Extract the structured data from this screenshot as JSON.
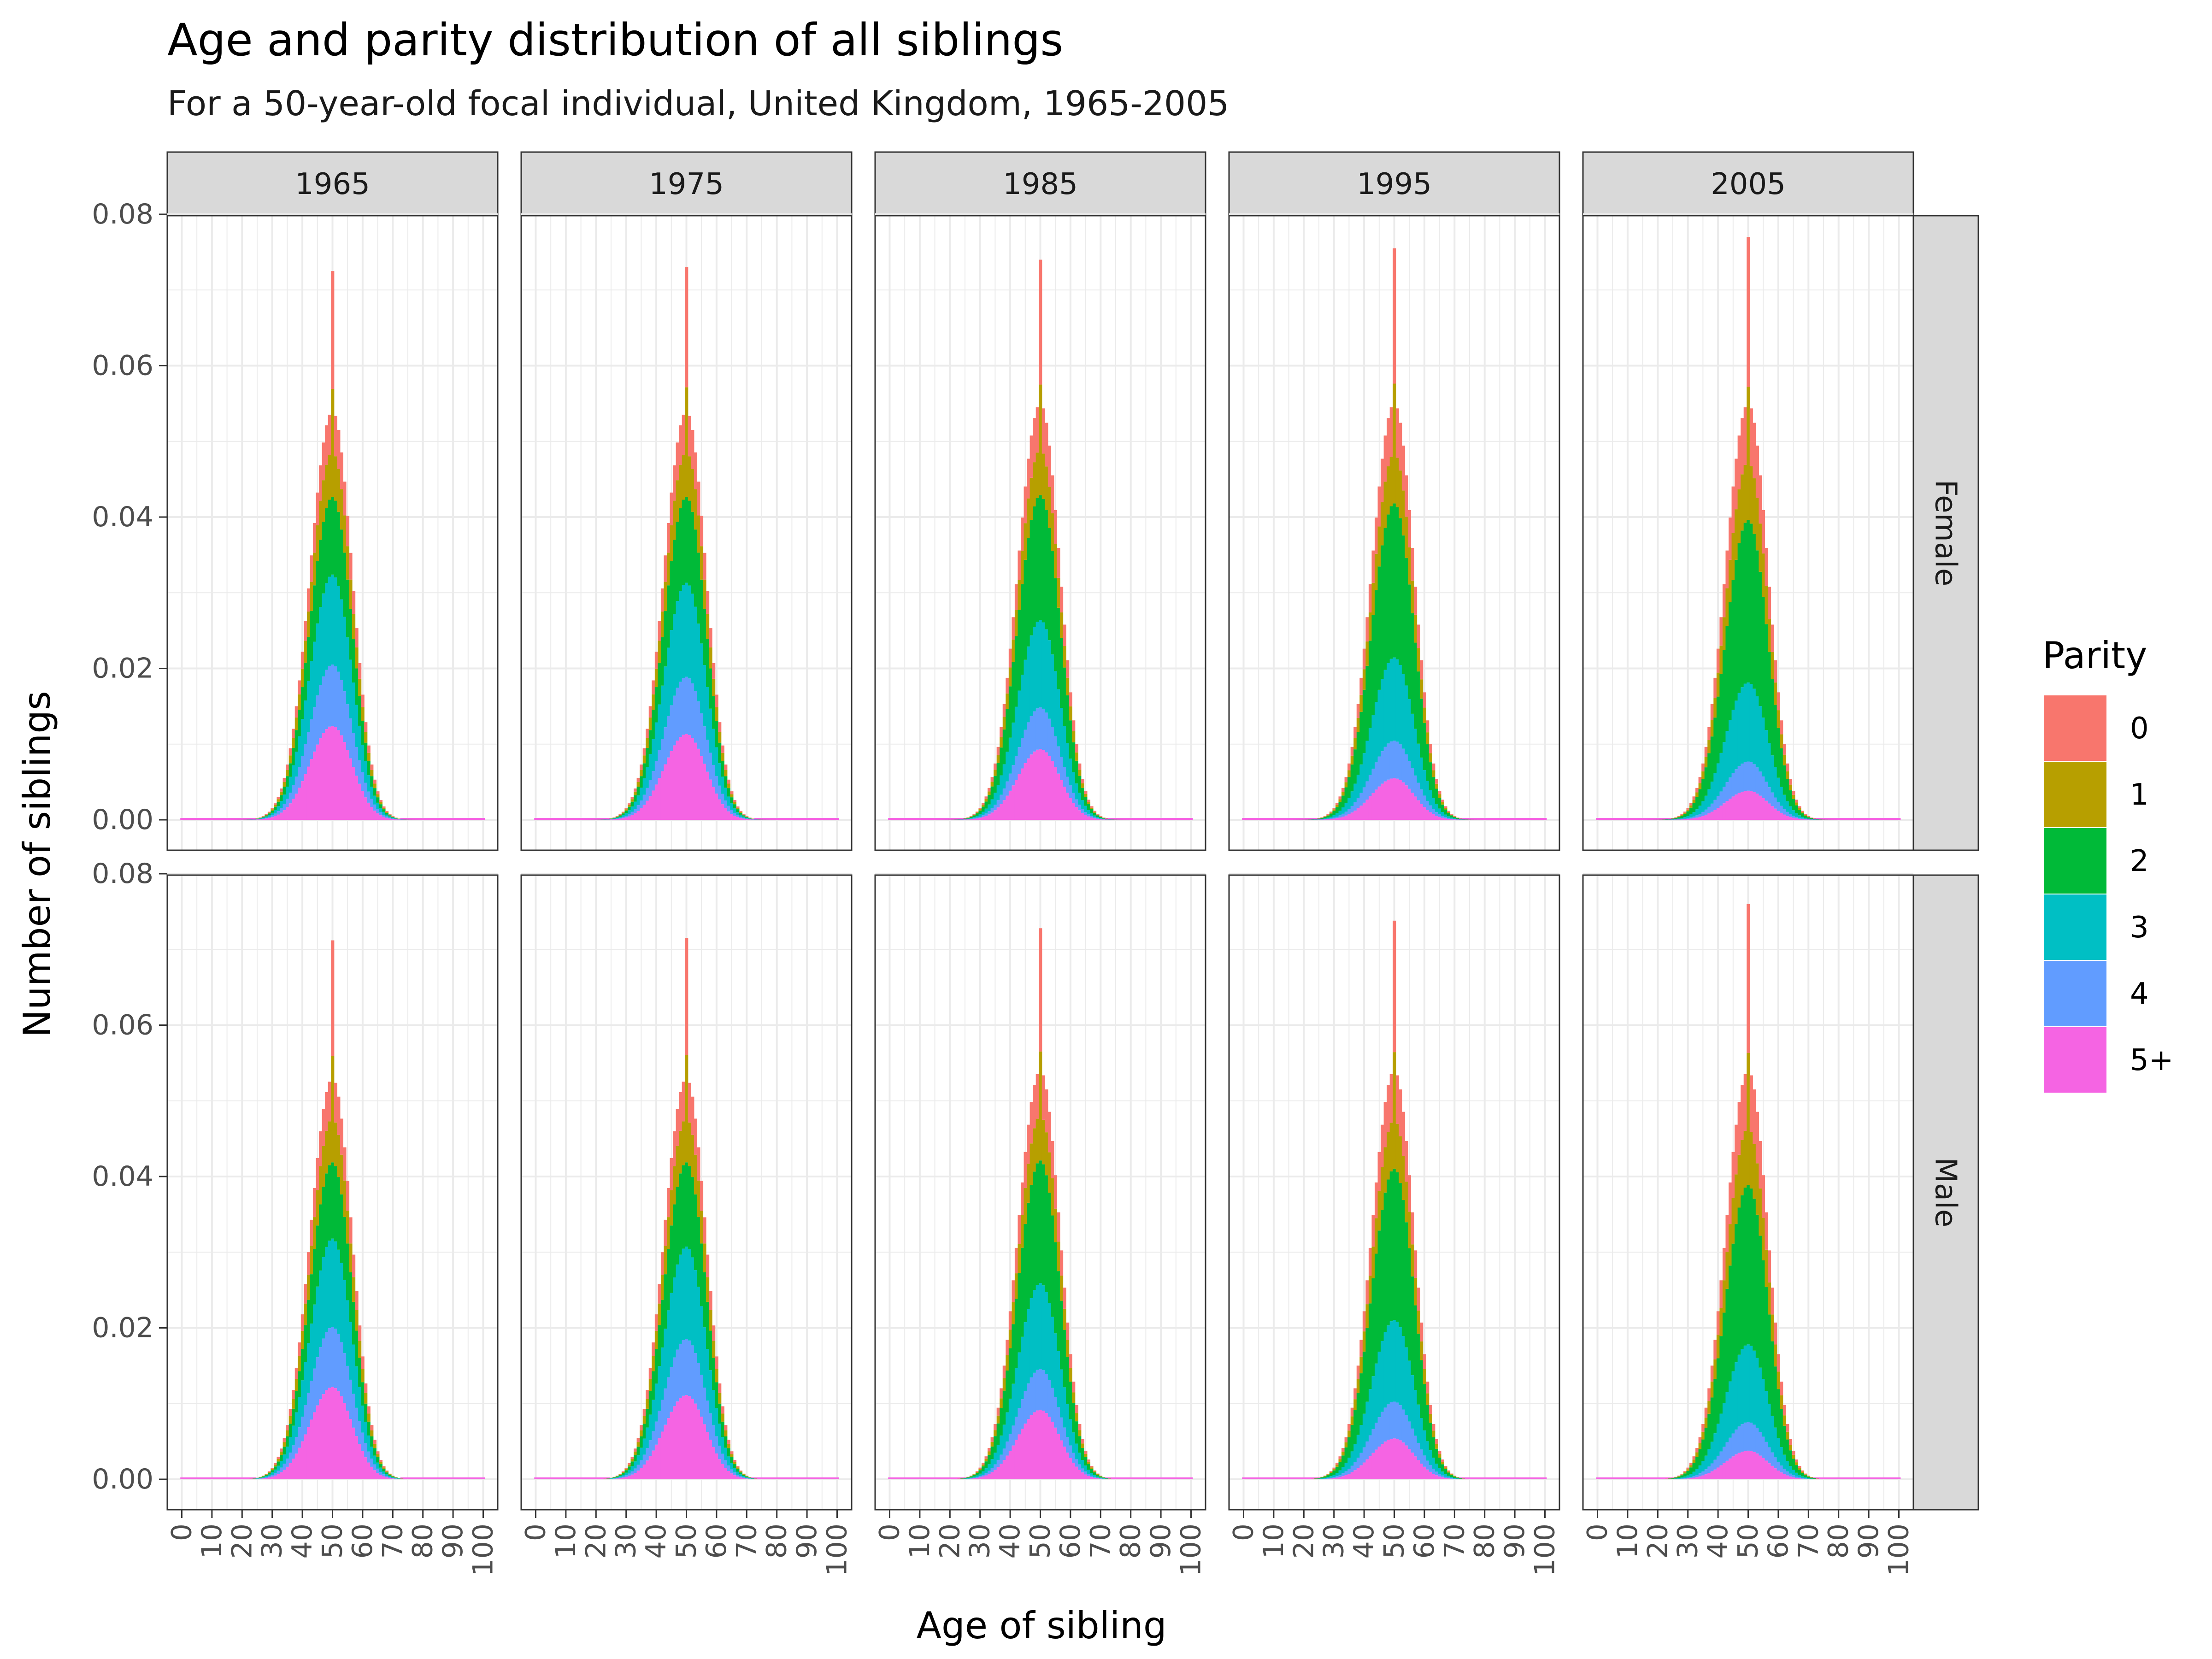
{
  "chart_data": {
    "type": "bar",
    "stacked": true,
    "title": "Age and parity distribution of all siblings",
    "subtitle": "For a 50-year-old focal individual, United Kingdom, 1965-2005",
    "xlabel": "Age of sibling",
    "ylabel": "Number of siblings",
    "xlim": [
      0,
      100
    ],
    "ylim": [
      0,
      0.08
    ],
    "x_ticks": [
      "0",
      "10",
      "20",
      "30",
      "40",
      "50",
      "60",
      "70",
      "80",
      "90",
      "100"
    ],
    "y_ticks": [
      "0.00",
      "0.02",
      "0.04",
      "0.06",
      "0.08"
    ],
    "grid": true,
    "facet_columns": [
      "1965",
      "1975",
      "1985",
      "1995",
      "2005"
    ],
    "facet_rows": [
      "Female",
      "Male"
    ],
    "legend": {
      "title": "Parity",
      "position": "right",
      "entries": [
        "0",
        "1",
        "2",
        "3",
        "4",
        "5+"
      ]
    },
    "colors": {
      "0": "#F8766D",
      "1": "#B79F00",
      "2": "#00BA38",
      "3": "#00BFC4",
      "4": "#619CFF",
      "5+": "#F564E3"
    },
    "distribution": {
      "mode_age": 50,
      "sd_left": 7.5,
      "sd_right": 6.5,
      "notes": "Stacked share by parity at the mode; spike of extra 0/1 mass at age 50 (siblings of same age)."
    },
    "panels": [
      {
        "row": "Female",
        "col": "1965",
        "peak_total": 0.0725,
        "body_total": 0.054,
        "shares": {
          "0": 0.1,
          "1": 0.11,
          "2": 0.19,
          "3": 0.22,
          "4": 0.15,
          "5+": 0.23
        }
      },
      {
        "row": "Female",
        "col": "1975",
        "peak_total": 0.073,
        "body_total": 0.054,
        "shares": {
          "0": 0.1,
          "1": 0.11,
          "2": 0.21,
          "3": 0.23,
          "4": 0.14,
          "5+": 0.21
        }
      },
      {
        "row": "Female",
        "col": "1985",
        "peak_total": 0.074,
        "body_total": 0.055,
        "shares": {
          "0": 0.11,
          "1": 0.11,
          "2": 0.3,
          "3": 0.21,
          "4": 0.1,
          "5+": 0.17
        }
      },
      {
        "row": "Female",
        "col": "1995",
        "peak_total": 0.0755,
        "body_total": 0.055,
        "shares": {
          "0": 0.12,
          "1": 0.12,
          "2": 0.37,
          "3": 0.2,
          "4": 0.09,
          "5+": 0.1
        }
      },
      {
        "row": "Female",
        "col": "2005",
        "peak_total": 0.077,
        "body_total": 0.055,
        "shares": {
          "0": 0.14,
          "1": 0.14,
          "2": 0.39,
          "3": 0.19,
          "4": 0.07,
          "5+": 0.07
        }
      },
      {
        "row": "Male",
        "col": "1965",
        "peak_total": 0.0712,
        "body_total": 0.053,
        "shares": {
          "0": 0.1,
          "1": 0.11,
          "2": 0.19,
          "3": 0.22,
          "4": 0.15,
          "5+": 0.23
        }
      },
      {
        "row": "Male",
        "col": "1975",
        "peak_total": 0.0715,
        "body_total": 0.053,
        "shares": {
          "0": 0.1,
          "1": 0.11,
          "2": 0.21,
          "3": 0.23,
          "4": 0.14,
          "5+": 0.21
        }
      },
      {
        "row": "Male",
        "col": "1985",
        "peak_total": 0.0728,
        "body_total": 0.054,
        "shares": {
          "0": 0.11,
          "1": 0.11,
          "2": 0.3,
          "3": 0.21,
          "4": 0.1,
          "5+": 0.17
        }
      },
      {
        "row": "Male",
        "col": "1995",
        "peak_total": 0.0738,
        "body_total": 0.054,
        "shares": {
          "0": 0.12,
          "1": 0.12,
          "2": 0.37,
          "3": 0.2,
          "4": 0.09,
          "5+": 0.1
        }
      },
      {
        "row": "Male",
        "col": "2005",
        "peak_total": 0.076,
        "body_total": 0.054,
        "shares": {
          "0": 0.14,
          "1": 0.14,
          "2": 0.39,
          "3": 0.19,
          "4": 0.07,
          "5+": 0.07
        }
      }
    ]
  }
}
